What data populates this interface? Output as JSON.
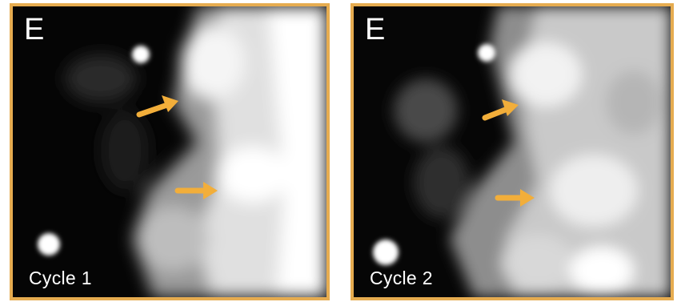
{
  "panels": [
    {
      "letter": "E",
      "caption": "Cycle 1"
    },
    {
      "letter": "E",
      "caption": "Cycle 2"
    }
  ],
  "colors": {
    "frame": "#E6AC50",
    "arrow": "#F2AE3A"
  },
  "icons": [
    "arrow-right-icon"
  ]
}
